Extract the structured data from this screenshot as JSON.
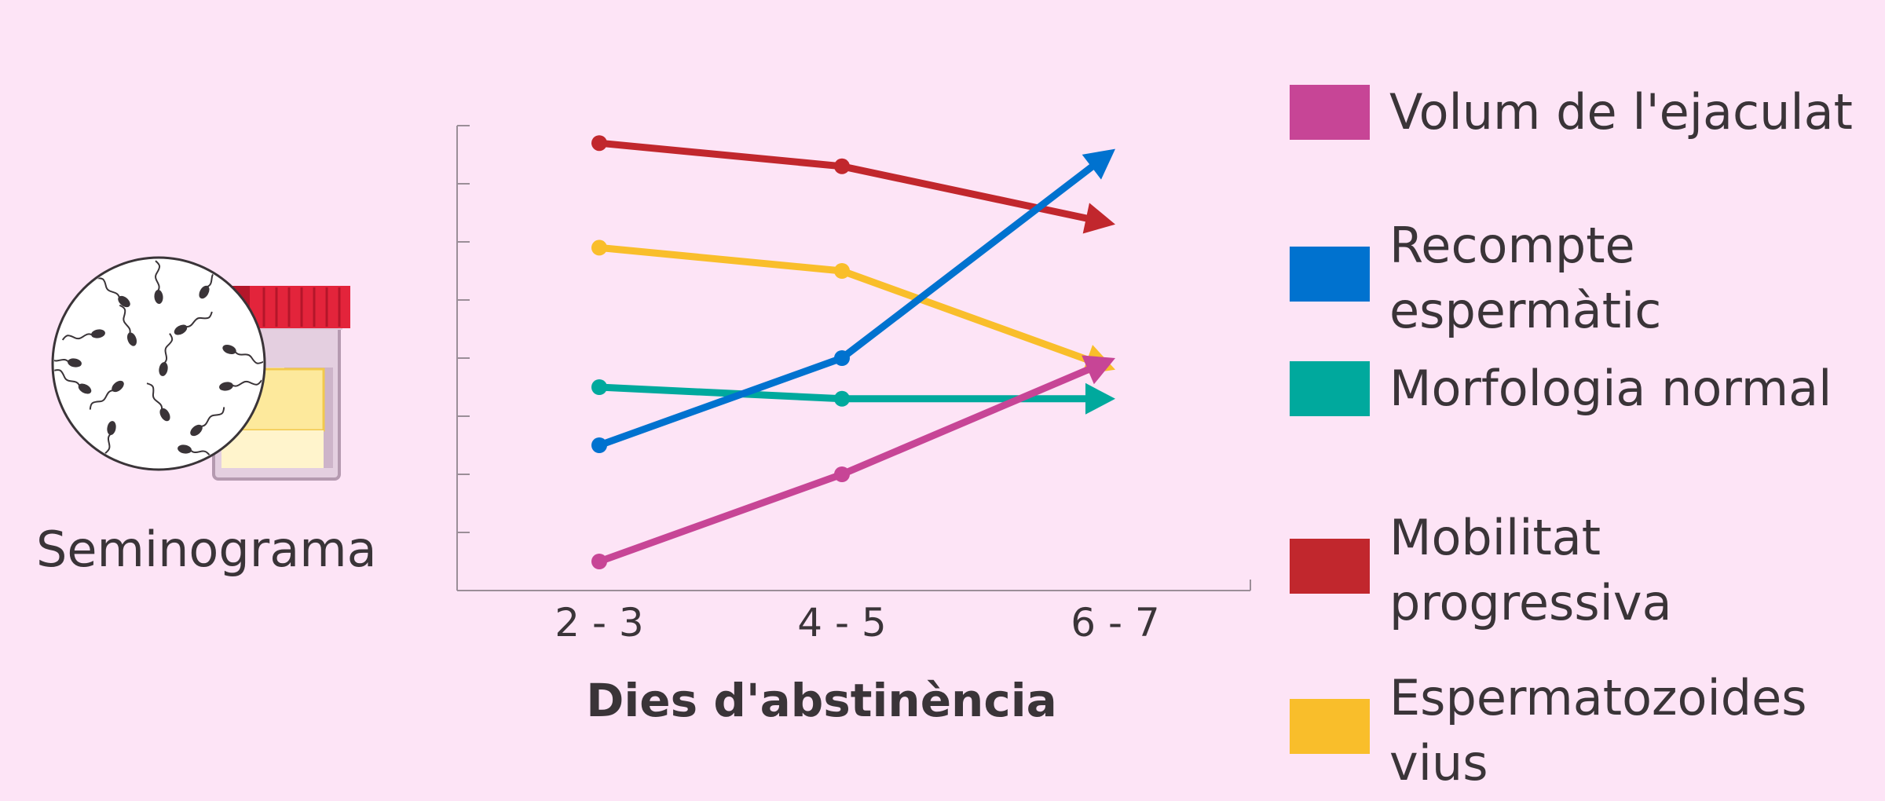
{
  "illustration": {
    "label": "Seminograma",
    "icons": [
      "microscope-view-icon",
      "sample-container-icon"
    ]
  },
  "chart_data": {
    "type": "line",
    "title": "",
    "xlabel": "Dies d'abstinència",
    "ylabel": "",
    "categories": [
      "2 - 3",
      "4 - 5",
      "6 - 7"
    ],
    "ylim": [
      0,
      8
    ],
    "yticks_count": 8,
    "y_tick_labels_shown": false,
    "grid": false,
    "legend_position": "right",
    "series": [
      {
        "name": "Volum de l'ejaculat",
        "color": "#c74596",
        "values": [
          0.5,
          2.0,
          4.0
        ],
        "trend_arrow": true
      },
      {
        "name": "Recompte espermàtic",
        "color": "#0072cf",
        "values": [
          2.5,
          4.0,
          7.6
        ],
        "trend_arrow": true
      },
      {
        "name": "Morfologia normal",
        "color": "#00a99d",
        "values": [
          3.5,
          3.3,
          3.3
        ],
        "trend_arrow": true
      },
      {
        "name": "Mobilitat progressiva",
        "color": "#c1272d",
        "values": [
          7.7,
          7.3,
          6.3
        ],
        "trend_arrow": true
      },
      {
        "name": "Espermatozoides vius",
        "color": "#f9be2b",
        "values": [
          5.9,
          5.5,
          3.8
        ],
        "trend_arrow": true
      }
    ],
    "legend_lines": [
      [
        "Volum de l'ejaculat"
      ],
      [
        "Recompte",
        "espermàtic"
      ],
      [
        "Morfologia normal"
      ],
      [
        "Mobilitat",
        "progressiva"
      ],
      [
        "Espermatozoides",
        "vius"
      ]
    ]
  }
}
